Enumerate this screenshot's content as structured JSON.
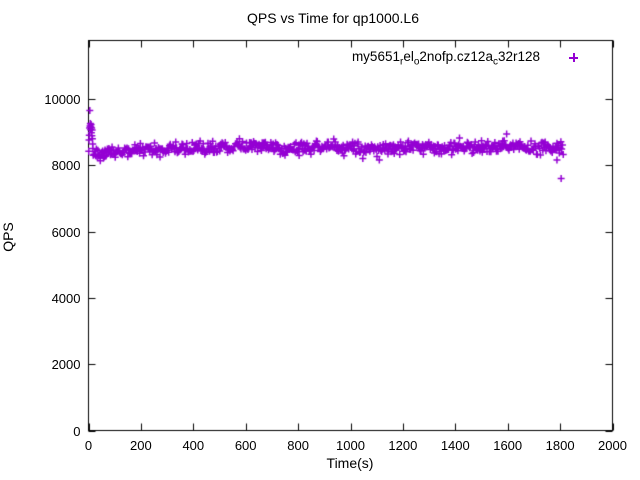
{
  "chart_data": {
    "type": "scatter",
    "title": "QPS vs Time for qp1000.L6",
    "xlabel": "Time(s)",
    "ylabel": "QPS",
    "xlim": [
      0,
      2000
    ],
    "ylim": [
      0,
      11760
    ],
    "xticks": [
      0,
      200,
      400,
      600,
      800,
      1000,
      1200,
      1400,
      1600,
      1800,
      2000
    ],
    "yticks": [
      0,
      2000,
      4000,
      6000,
      8000,
      10000
    ],
    "grid": false,
    "tick_style": "inward-mirrored",
    "legend_position": "top-right-inside",
    "background_color": "#ffffff",
    "axis_color": "#000000",
    "series": [
      {
        "name": "my5651_rel_o2nofp.cz12a_c32r128",
        "label_segments": [
          {
            "t": "my5651"
          },
          {
            "t": "r",
            "sub": true
          },
          {
            "t": "el"
          },
          {
            "t": "o",
            "sub": true
          },
          {
            "t": "2nofp.cz12a"
          },
          {
            "t": "c",
            "sub": true
          },
          {
            "t": "32r128"
          }
        ],
        "color": "#9400d3",
        "marker": "plus",
        "marker_size": 7,
        "startup_points": [
          [
            1,
            8420
          ],
          [
            2,
            8760
          ],
          [
            3,
            8900
          ],
          [
            4,
            9120
          ],
          [
            5,
            9650
          ],
          [
            6,
            9180
          ],
          [
            7,
            9260
          ],
          [
            8,
            9070
          ],
          [
            9,
            9150
          ],
          [
            10,
            9230
          ],
          [
            11,
            8980
          ],
          [
            12,
            9120
          ],
          [
            13,
            8890
          ],
          [
            14,
            9060
          ],
          [
            15,
            8800
          ],
          [
            16,
            8640
          ],
          [
            17,
            8500
          ]
        ],
        "outlier_points": [
          [
            1788,
            8160
          ],
          [
            1804,
            7600
          ]
        ],
        "steady_band": {
          "t_start": 18,
          "t_end": 1812,
          "step": 3,
          "jitter_sd": 95,
          "low_tail_prob": 0.012,
          "high_tail_prob": 0.006,
          "seed": 1337,
          "mean_keypoints": [
            [
              18,
              8360
            ],
            [
              60,
              8400
            ],
            [
              120,
              8420
            ],
            [
              200,
              8460
            ],
            [
              280,
              8480
            ],
            [
              360,
              8490
            ],
            [
              440,
              8510
            ],
            [
              520,
              8500
            ],
            [
              600,
              8560
            ],
            [
              660,
              8580
            ],
            [
              720,
              8530
            ],
            [
              800,
              8520
            ],
            [
              880,
              8540
            ],
            [
              960,
              8550
            ],
            [
              1040,
              8550
            ],
            [
              1120,
              8530
            ],
            [
              1200,
              8540
            ],
            [
              1280,
              8550
            ],
            [
              1360,
              8540
            ],
            [
              1440,
              8560
            ],
            [
              1520,
              8540
            ],
            [
              1600,
              8560
            ],
            [
              1680,
              8540
            ],
            [
              1760,
              8550
            ],
            [
              1812,
              8540
            ]
          ]
        }
      }
    ]
  }
}
